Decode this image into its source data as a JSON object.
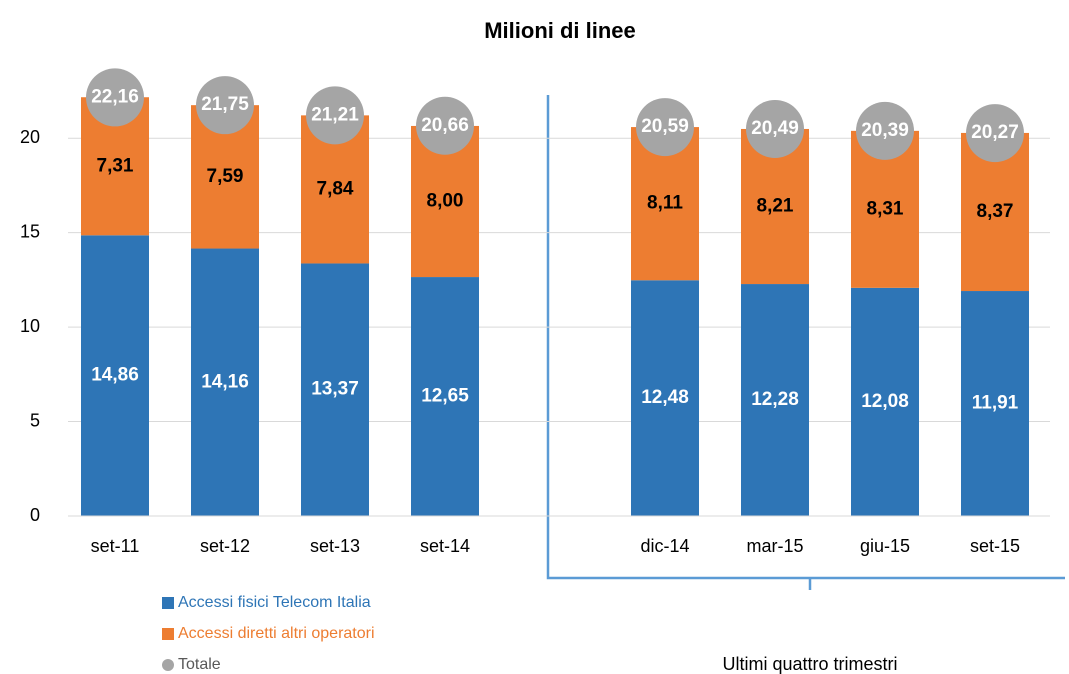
{
  "chart_data": {
    "type": "bar",
    "stacked": true,
    "title": "Milioni di linee",
    "categories": [
      "set-11",
      "set-12",
      "set-13",
      "set-14",
      null,
      "dic-14",
      "mar-15",
      "giu-15",
      "set-15"
    ],
    "series": [
      {
        "name": "Accessi fisici Telecom Italia",
        "color": "#2e75b6",
        "label_color": "#ffffff",
        "values": [
          14.86,
          14.16,
          13.37,
          12.65,
          null,
          12.48,
          12.28,
          12.08,
          11.91
        ],
        "value_labels": [
          "14,86",
          "14,16",
          "13,37",
          "12,65",
          null,
          "12,48",
          "12,28",
          "12,08",
          "11,91"
        ]
      },
      {
        "name": "Accessi diretti altri operatori",
        "color": "#ed7d31",
        "label_color": "#000000",
        "values": [
          7.31,
          7.59,
          7.84,
          8.0,
          null,
          8.11,
          8.21,
          8.31,
          8.37
        ],
        "value_labels": [
          "7,31",
          "7,59",
          "7,84",
          "8,00",
          null,
          "8,11",
          "8,21",
          "8,31",
          "8,37"
        ]
      }
    ],
    "totals": {
      "name": "Totale",
      "color": "#a5a5a5",
      "label_color": "#ffffff",
      "values": [
        22.16,
        21.75,
        21.21,
        20.66,
        null,
        20.59,
        20.49,
        20.39,
        20.27
      ],
      "value_labels": [
        "22,16",
        "21,75",
        "21,21",
        "20,66",
        null,
        "20,59",
        "20,49",
        "20,39",
        "20,27"
      ]
    },
    "ylim": [
      0,
      22.5
    ],
    "yticks": [
      0,
      5,
      10,
      15,
      20
    ],
    "grid": true,
    "annotation": "Ultimi quattro trimestri"
  }
}
